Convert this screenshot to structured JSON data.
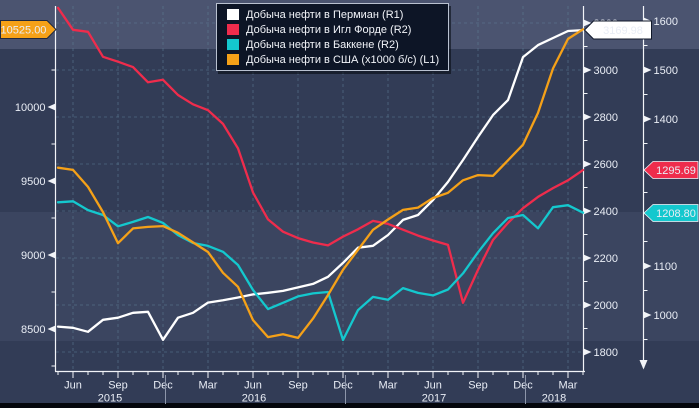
{
  "chart": {
    "legend": {
      "position": "top-center"
    },
    "badges": {
      "left_axis": {
        "text": "10525.00",
        "color": "#f5a118",
        "text_color": "#0a0d14"
      },
      "right_axis1": {
        "text": "3169.98",
        "color": "#ffffff",
        "text_color": "#0a0d14"
      },
      "right_axis2_red": {
        "text": "1295.69",
        "color": "#ef2c4c",
        "text_color": "#ffffff"
      },
      "right_axis2_cyan": {
        "text": "1208.80",
        "color": "#14c8ce",
        "text_color": "#0a0d14"
      }
    },
    "axes": {
      "left": {
        "ticks": [
          10000,
          9500,
          9000,
          8500
        ]
      },
      "right1": {
        "ticks": [
          3200,
          3000,
          2800,
          2600,
          2400,
          2200,
          2000,
          1800
        ]
      },
      "right2": {
        "ticks": [
          1600,
          1500,
          1400,
          1100,
          1000
        ]
      },
      "x": {
        "months": [
          "Jun",
          "Sep",
          "Dec",
          "Mar",
          "Jun",
          "Sep",
          "Dec",
          "Mar",
          "Jun",
          "Sep",
          "Dec",
          "Mar"
        ],
        "years": [
          "2015",
          "2016",
          "2017",
          "2018"
        ]
      }
    }
  },
  "chart_data": {
    "type": "line",
    "interval": "monthly",
    "x": [
      "2015-05",
      "2015-06",
      "2015-07",
      "2015-08",
      "2015-09",
      "2015-10",
      "2015-11",
      "2015-12",
      "2016-01",
      "2016-02",
      "2016-03",
      "2016-04",
      "2016-05",
      "2016-06",
      "2016-07",
      "2016-08",
      "2016-09",
      "2016-10",
      "2016-11",
      "2016-12",
      "2017-01",
      "2017-02",
      "2017-03",
      "2017-04",
      "2017-05",
      "2017-06",
      "2017-07",
      "2017-08",
      "2017-09",
      "2017-10",
      "2017-11",
      "2017-12",
      "2018-01",
      "2018-02",
      "2018-03",
      "2018-04"
    ],
    "axis_ranges": {
      "L1": "left axis ~8200-10600",
      "R1": "first right axis 1800-3200",
      "R2": "second right axis 950-1650"
    },
    "grid": true,
    "series": [
      {
        "id": "permian",
        "name": "Добыча нефти в Пермиан (R1)",
        "axis": "R1",
        "color": "#ffffff",
        "values": [
          1908,
          1903,
          1886,
          1937,
          1946,
          1967,
          1971,
          1852,
          1946,
          1967,
          2010,
          2020,
          2032,
          2045,
          2052,
          2060,
          2075,
          2090,
          2120,
          2179,
          2244,
          2252,
          2298,
          2362,
          2383,
          2447,
          2524,
          2617,
          2715,
          2808,
          2872,
          3055,
          3106,
          3136,
          3166,
          3169.98
        ]
      },
      {
        "id": "eagle-ford",
        "name": "Добыча нефти в Игл Форде (R2)",
        "axis": "R2",
        "color": "#ef2c4c",
        "values": [
          1627,
          1582,
          1578,
          1527,
          1517,
          1506,
          1475,
          1480,
          1449,
          1430,
          1418,
          1390,
          1340,
          1250,
          1195,
          1170,
          1157,
          1148,
          1142,
          1160,
          1175,
          1192,
          1186,
          1174,
          1162,
          1152,
          1143,
          1025,
          1092,
          1153,
          1188,
          1218,
          1241,
          1259,
          1275,
          1295.69
        ]
      },
      {
        "id": "bakken",
        "name": "Добыча нефти в Баккене (R2)",
        "axis": "R2",
        "color": "#14c8ce",
        "values": [
          1230,
          1232,
          1214,
          1204,
          1181,
          1190,
          1200,
          1188,
          1163,
          1147,
          1141,
          1129,
          1102,
          1051,
          1012,
          1025,
          1038,
          1044,
          1047,
          949,
          1010,
          1037,
          1031,
          1055,
          1045,
          1040,
          1052,
          1085,
          1128,
          1167,
          1198,
          1204,
          1177,
          1220,
          1224,
          1208.8
        ]
      },
      {
        "id": "us-total",
        "name": "Добыча нефти в США (x1000 б/с) (L1)",
        "axis": "L1",
        "color": "#f5a118",
        "values": [
          9590,
          9575,
          9460,
          9290,
          9080,
          9180,
          9190,
          9195,
          9150,
          9085,
          9020,
          8880,
          8785,
          8560,
          8445,
          8465,
          8440,
          8570,
          8730,
          8900,
          9035,
          9170,
          9240,
          9305,
          9320,
          9385,
          9420,
          9505,
          9540,
          9535,
          9640,
          9745,
          9960,
          10260,
          10460,
          10525
        ]
      }
    ]
  }
}
